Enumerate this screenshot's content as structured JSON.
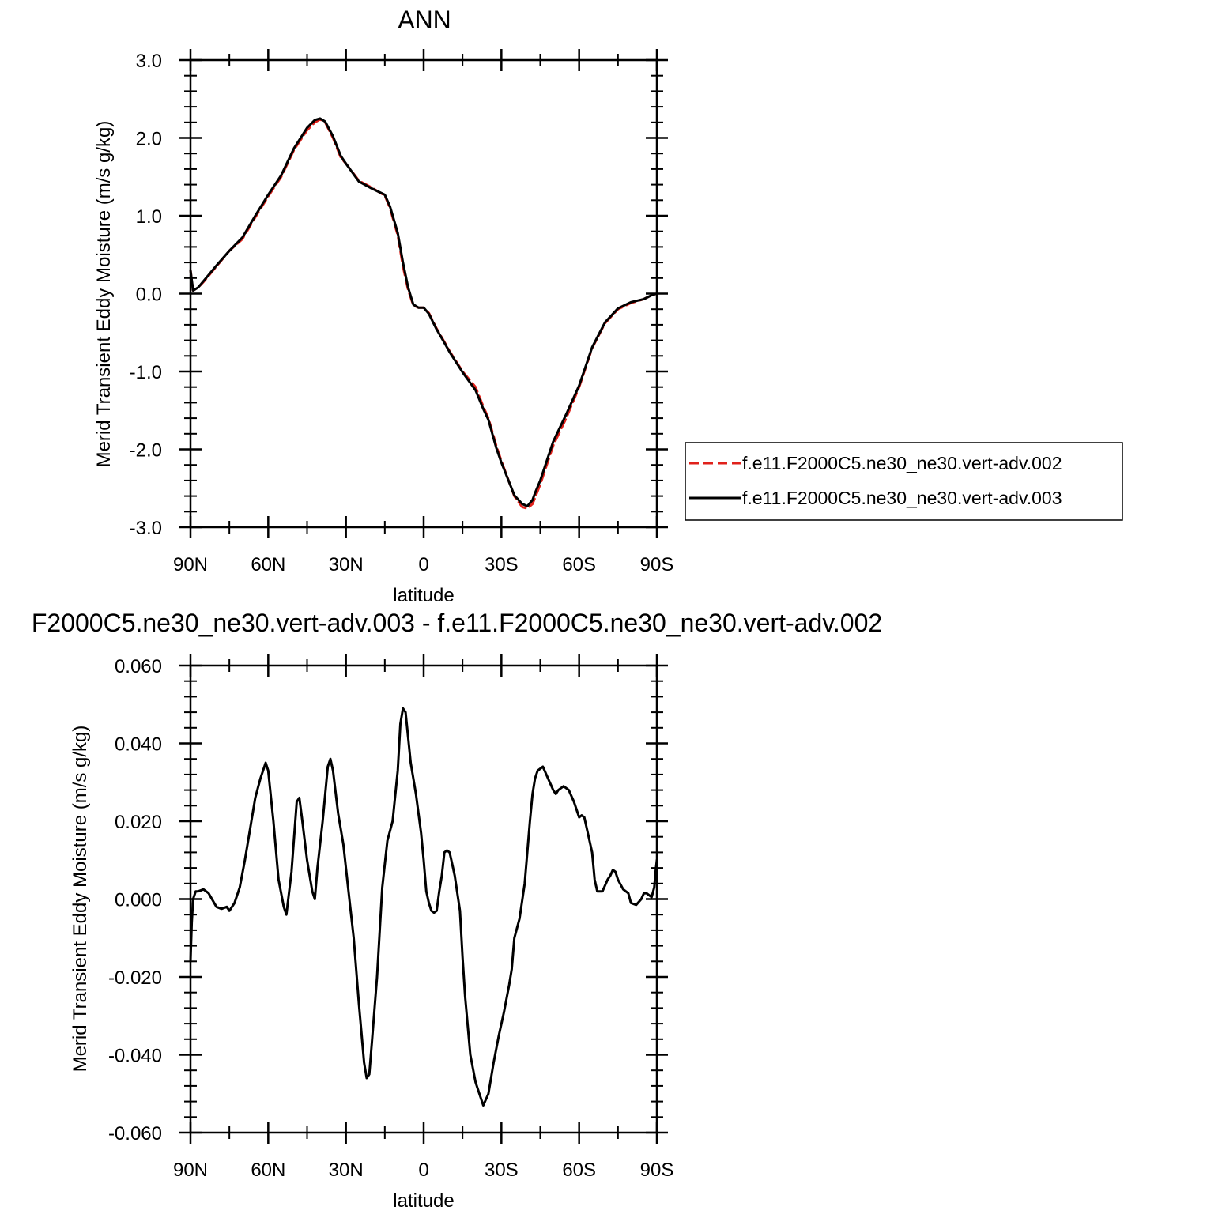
{
  "colors": {
    "series_002": "#e0211b",
    "series_003": "#000000",
    "axis": "#000000"
  },
  "chart_data": [
    {
      "type": "line",
      "title": "ANN",
      "xlabel": "latitude",
      "ylabel": "Merid Transient Eddy Moisture (m/s g/kg)",
      "xlim": [
        90,
        -90
      ],
      "ylim": [
        -3.0,
        3.0
      ],
      "xticks": [
        {
          "value": 90,
          "label": "90N"
        },
        {
          "value": 60,
          "label": "60N"
        },
        {
          "value": 30,
          "label": "30N"
        },
        {
          "value": 0,
          "label": "0"
        },
        {
          "value": -30,
          "label": "30S"
        },
        {
          "value": -60,
          "label": "60S"
        },
        {
          "value": -90,
          "label": "90S"
        }
      ],
      "yticks": [
        {
          "value": 3.0,
          "label": "3.0"
        },
        {
          "value": 2.0,
          "label": "2.0"
        },
        {
          "value": 1.0,
          "label": "1.0"
        },
        {
          "value": 0.0,
          "label": "0.0"
        },
        {
          "value": -1.0,
          "label": "-1.0"
        },
        {
          "value": -2.0,
          "label": "-2.0"
        },
        {
          "value": -3.0,
          "label": "-3.0"
        }
      ],
      "legend_position": "right",
      "series": [
        {
          "name": "f.e11.F2000C5.ne30_ne30.vert-adv.002",
          "style": "dashed",
          "color": "#e0211b",
          "x": [
            90,
            89,
            87,
            85,
            80,
            75,
            70,
            65,
            60,
            55,
            50,
            45,
            42,
            40,
            38,
            35,
            32,
            30,
            25,
            20,
            15,
            13,
            10,
            8,
            6,
            5,
            4,
            2,
            0,
            -2,
            -5,
            -8,
            -10,
            -15,
            -20,
            -23,
            -25,
            -28,
            -30,
            -35,
            -38,
            -40,
            -42,
            -43,
            -45,
            -48,
            -50,
            -55,
            -60,
            -65,
            -70,
            -75,
            -80,
            -85,
            -88,
            -90
          ],
          "y": [
            0.3,
            0.04,
            0.08,
            0.15,
            0.35,
            0.55,
            0.7,
            0.98,
            1.25,
            1.5,
            1.85,
            2.1,
            2.2,
            2.24,
            2.2,
            2.0,
            1.75,
            1.67,
            1.45,
            1.36,
            1.26,
            1.1,
            0.75,
            0.35,
            0.05,
            -0.05,
            -0.15,
            -0.18,
            -0.18,
            -0.25,
            -0.45,
            -0.62,
            -0.74,
            -1.0,
            -1.2,
            -1.45,
            -1.6,
            -1.95,
            -2.15,
            -2.6,
            -2.74,
            -2.76,
            -2.7,
            -2.62,
            -2.45,
            -2.15,
            -1.95,
            -1.6,
            -1.2,
            -0.7,
            -0.38,
            -0.2,
            -0.12,
            -0.07,
            -0.02,
            0.0
          ]
        },
        {
          "name": "f.e11.F2000C5.ne30_ne30.vert-adv.003",
          "style": "solid",
          "color": "#000000",
          "x": [
            90,
            89,
            87,
            85,
            80,
            75,
            70,
            65,
            60,
            55,
            50,
            45,
            42,
            40,
            38,
            35,
            32,
            30,
            25,
            20,
            15,
            13,
            10,
            8,
            6,
            5,
            4,
            2,
            0,
            -2,
            -5,
            -8,
            -10,
            -15,
            -20,
            -23,
            -25,
            -28,
            -30,
            -35,
            -38,
            -40,
            -42,
            -43,
            -45,
            -48,
            -50,
            -55,
            -60,
            -65,
            -70,
            -75,
            -80,
            -85,
            -88,
            -90
          ],
          "y": [
            0.3,
            0.04,
            0.08,
            0.16,
            0.36,
            0.55,
            0.72,
            1.0,
            1.27,
            1.52,
            1.87,
            2.13,
            2.23,
            2.25,
            2.21,
            2.02,
            1.77,
            1.67,
            1.44,
            1.35,
            1.27,
            1.12,
            0.78,
            0.4,
            0.08,
            -0.03,
            -0.14,
            -0.18,
            -0.18,
            -0.26,
            -0.46,
            -0.63,
            -0.75,
            -1.01,
            -1.24,
            -1.48,
            -1.62,
            -1.98,
            -2.17,
            -2.59,
            -2.7,
            -2.73,
            -2.65,
            -2.56,
            -2.4,
            -2.1,
            -1.9,
            -1.55,
            -1.18,
            -0.69,
            -0.37,
            -0.19,
            -0.11,
            -0.07,
            -0.02,
            0.0
          ]
        }
      ]
    },
    {
      "type": "line",
      "title": "F2000C5.ne30_ne30.vert-adv.003 - f.e11.F2000C5.ne30_ne30.vert-adv.002",
      "xlabel": "latitude",
      "ylabel": "Merid Transient Eddy Moisture (m/s g/kg)",
      "xlim": [
        90,
        -90
      ],
      "ylim": [
        -0.06,
        0.06
      ],
      "xticks": [
        {
          "value": 90,
          "label": "90N"
        },
        {
          "value": 60,
          "label": "60N"
        },
        {
          "value": 30,
          "label": "30N"
        },
        {
          "value": 0,
          "label": "0"
        },
        {
          "value": -30,
          "label": "30S"
        },
        {
          "value": -60,
          "label": "60S"
        },
        {
          "value": -90,
          "label": "90S"
        }
      ],
      "yticks": [
        {
          "value": 0.06,
          "label": "0.060"
        },
        {
          "value": 0.04,
          "label": "0.040"
        },
        {
          "value": 0.02,
          "label": "0.020"
        },
        {
          "value": 0.0,
          "label": "0.000"
        },
        {
          "value": -0.02,
          "label": "-0.020"
        },
        {
          "value": -0.04,
          "label": "-0.040"
        },
        {
          "value": -0.06,
          "label": "-0.060"
        }
      ],
      "series": [
        {
          "style": "solid",
          "color": "#000000",
          "x": [
            90,
            89.5,
            89,
            88,
            87,
            85,
            83,
            80,
            78,
            76,
            75,
            73,
            71,
            69,
            67,
            65,
            63,
            61,
            60,
            58,
            56,
            54,
            53,
            51,
            49,
            48,
            47,
            45,
            43,
            42,
            41,
            39,
            37,
            36,
            35,
            33,
            31,
            29,
            27,
            25,
            23,
            22,
            21,
            20,
            18,
            16,
            14,
            12,
            10,
            9,
            8,
            7,
            5,
            3,
            1,
            0,
            -1,
            -2,
            -3,
            -4,
            -5,
            -6,
            -7,
            -8,
            -9,
            -10,
            -11,
            -12,
            -14,
            -15,
            -16,
            -18,
            -20,
            -21,
            -22,
            -23,
            -25,
            -27,
            -29,
            -31,
            -33,
            -34,
            -35,
            -37,
            -39,
            -40,
            -41,
            -42,
            -43,
            -44,
            -46,
            -48,
            -50,
            -51,
            -52,
            -54,
            -56,
            -58,
            -60,
            -61,
            -62,
            -63,
            -65,
            -66,
            -67,
            -69,
            -71,
            -72,
            -73,
            -74,
            -75,
            -77,
            -79,
            -80,
            -82,
            -84,
            -85,
            -86,
            -88,
            -89,
            -89.5,
            -90
          ],
          "y": [
            -0.016,
            -0.006,
            0.0,
            0.002,
            0.002,
            0.0025,
            0.0015,
            -0.002,
            -0.0025,
            -0.002,
            -0.003,
            -0.001,
            0.003,
            0.01,
            0.018,
            0.026,
            0.031,
            0.035,
            0.033,
            0.02,
            0.005,
            -0.002,
            -0.004,
            0.007,
            0.025,
            0.026,
            0.021,
            0.01,
            0.002,
            0.0,
            0.008,
            0.02,
            0.034,
            0.036,
            0.033,
            0.022,
            0.014,
            0.002,
            -0.01,
            -0.027,
            -0.042,
            -0.046,
            -0.045,
            -0.037,
            -0.02,
            0.003,
            0.015,
            0.02,
            0.033,
            0.045,
            0.049,
            0.048,
            0.035,
            0.027,
            0.017,
            0.01,
            0.002,
            -0.001,
            -0.003,
            -0.0035,
            -0.003,
            0.002,
            0.006,
            0.012,
            0.0125,
            0.012,
            0.009,
            0.006,
            -0.003,
            -0.015,
            -0.025,
            -0.04,
            -0.047,
            -0.049,
            -0.051,
            -0.053,
            -0.05,
            -0.042,
            -0.035,
            -0.029,
            -0.022,
            -0.018,
            -0.01,
            -0.005,
            0.004,
            0.012,
            0.02,
            0.027,
            0.031,
            0.033,
            0.034,
            0.031,
            0.028,
            0.027,
            0.028,
            0.029,
            0.028,
            0.025,
            0.021,
            0.0215,
            0.021,
            0.018,
            0.012,
            0.005,
            0.002,
            0.002,
            0.005,
            0.006,
            0.0075,
            0.007,
            0.005,
            0.0025,
            0.0015,
            -0.001,
            -0.0015,
            0.0,
            0.0015,
            0.0015,
            0.0005,
            0.003,
            0.007,
            0.01
          ]
        }
      ]
    }
  ]
}
